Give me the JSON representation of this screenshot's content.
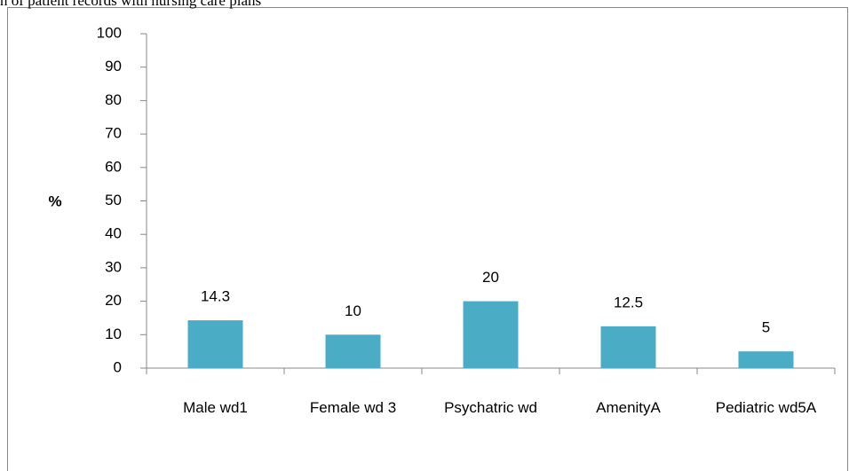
{
  "chart_data": {
    "type": "bar",
    "title": "n of patient records with nursing care plans",
    "y_label": "%",
    "categories": [
      "Male wd1",
      "Female wd 3",
      "Psychatric wd",
      "AmenityA",
      "Pediatric wd5A"
    ],
    "values": [
      14.3,
      10,
      20,
      12.5,
      5
    ],
    "color": "#4bacc6",
    "ylim": [
      0,
      100
    ],
    "yticks": [
      0,
      10,
      20,
      30,
      40,
      50,
      60,
      70,
      80,
      90,
      100
    ],
    "grid": false
  }
}
